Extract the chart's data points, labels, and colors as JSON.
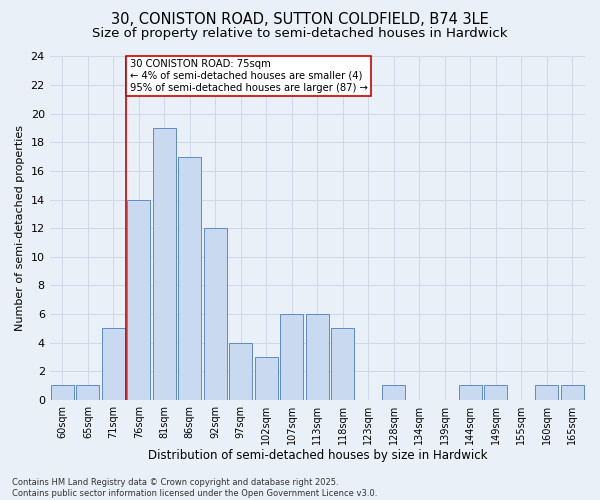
{
  "title_line1": "30, CONISTON ROAD, SUTTON COLDFIELD, B74 3LE",
  "title_line2": "Size of property relative to semi-detached houses in Hardwick",
  "xlabel": "Distribution of semi-detached houses by size in Hardwick",
  "ylabel": "Number of semi-detached properties",
  "categories": [
    "60sqm",
    "65sqm",
    "71sqm",
    "76sqm",
    "81sqm",
    "86sqm",
    "92sqm",
    "97sqm",
    "102sqm",
    "107sqm",
    "113sqm",
    "118sqm",
    "123sqm",
    "128sqm",
    "134sqm",
    "139sqm",
    "144sqm",
    "149sqm",
    "155sqm",
    "160sqm",
    "165sqm"
  ],
  "values": [
    1,
    1,
    5,
    14,
    19,
    17,
    12,
    4,
    3,
    6,
    6,
    5,
    0,
    1,
    0,
    0,
    1,
    1,
    0,
    1,
    1
  ],
  "bar_color": "#c9d9ef",
  "bar_edge_color": "#5b8bc9",
  "highlight_color": "#cc0000",
  "annotation_text": "30 CONISTON ROAD: 75sqm\n← 4% of semi-detached houses are smaller (4)\n95% of semi-detached houses are larger (87) →",
  "annotation_box_color": "#ffffff",
  "annotation_box_edge": "#cc0000",
  "ylim": [
    0,
    24
  ],
  "yticks": [
    0,
    2,
    4,
    6,
    8,
    10,
    12,
    14,
    16,
    18,
    20,
    22,
    24
  ],
  "grid_color": "#d0d8e8",
  "background_color": "#eaf0f8",
  "title_fontsize": 10.5,
  "subtitle_fontsize": 9.5,
  "footnote": "Contains HM Land Registry data © Crown copyright and database right 2025.\nContains public sector information licensed under the Open Government Licence v3.0."
}
